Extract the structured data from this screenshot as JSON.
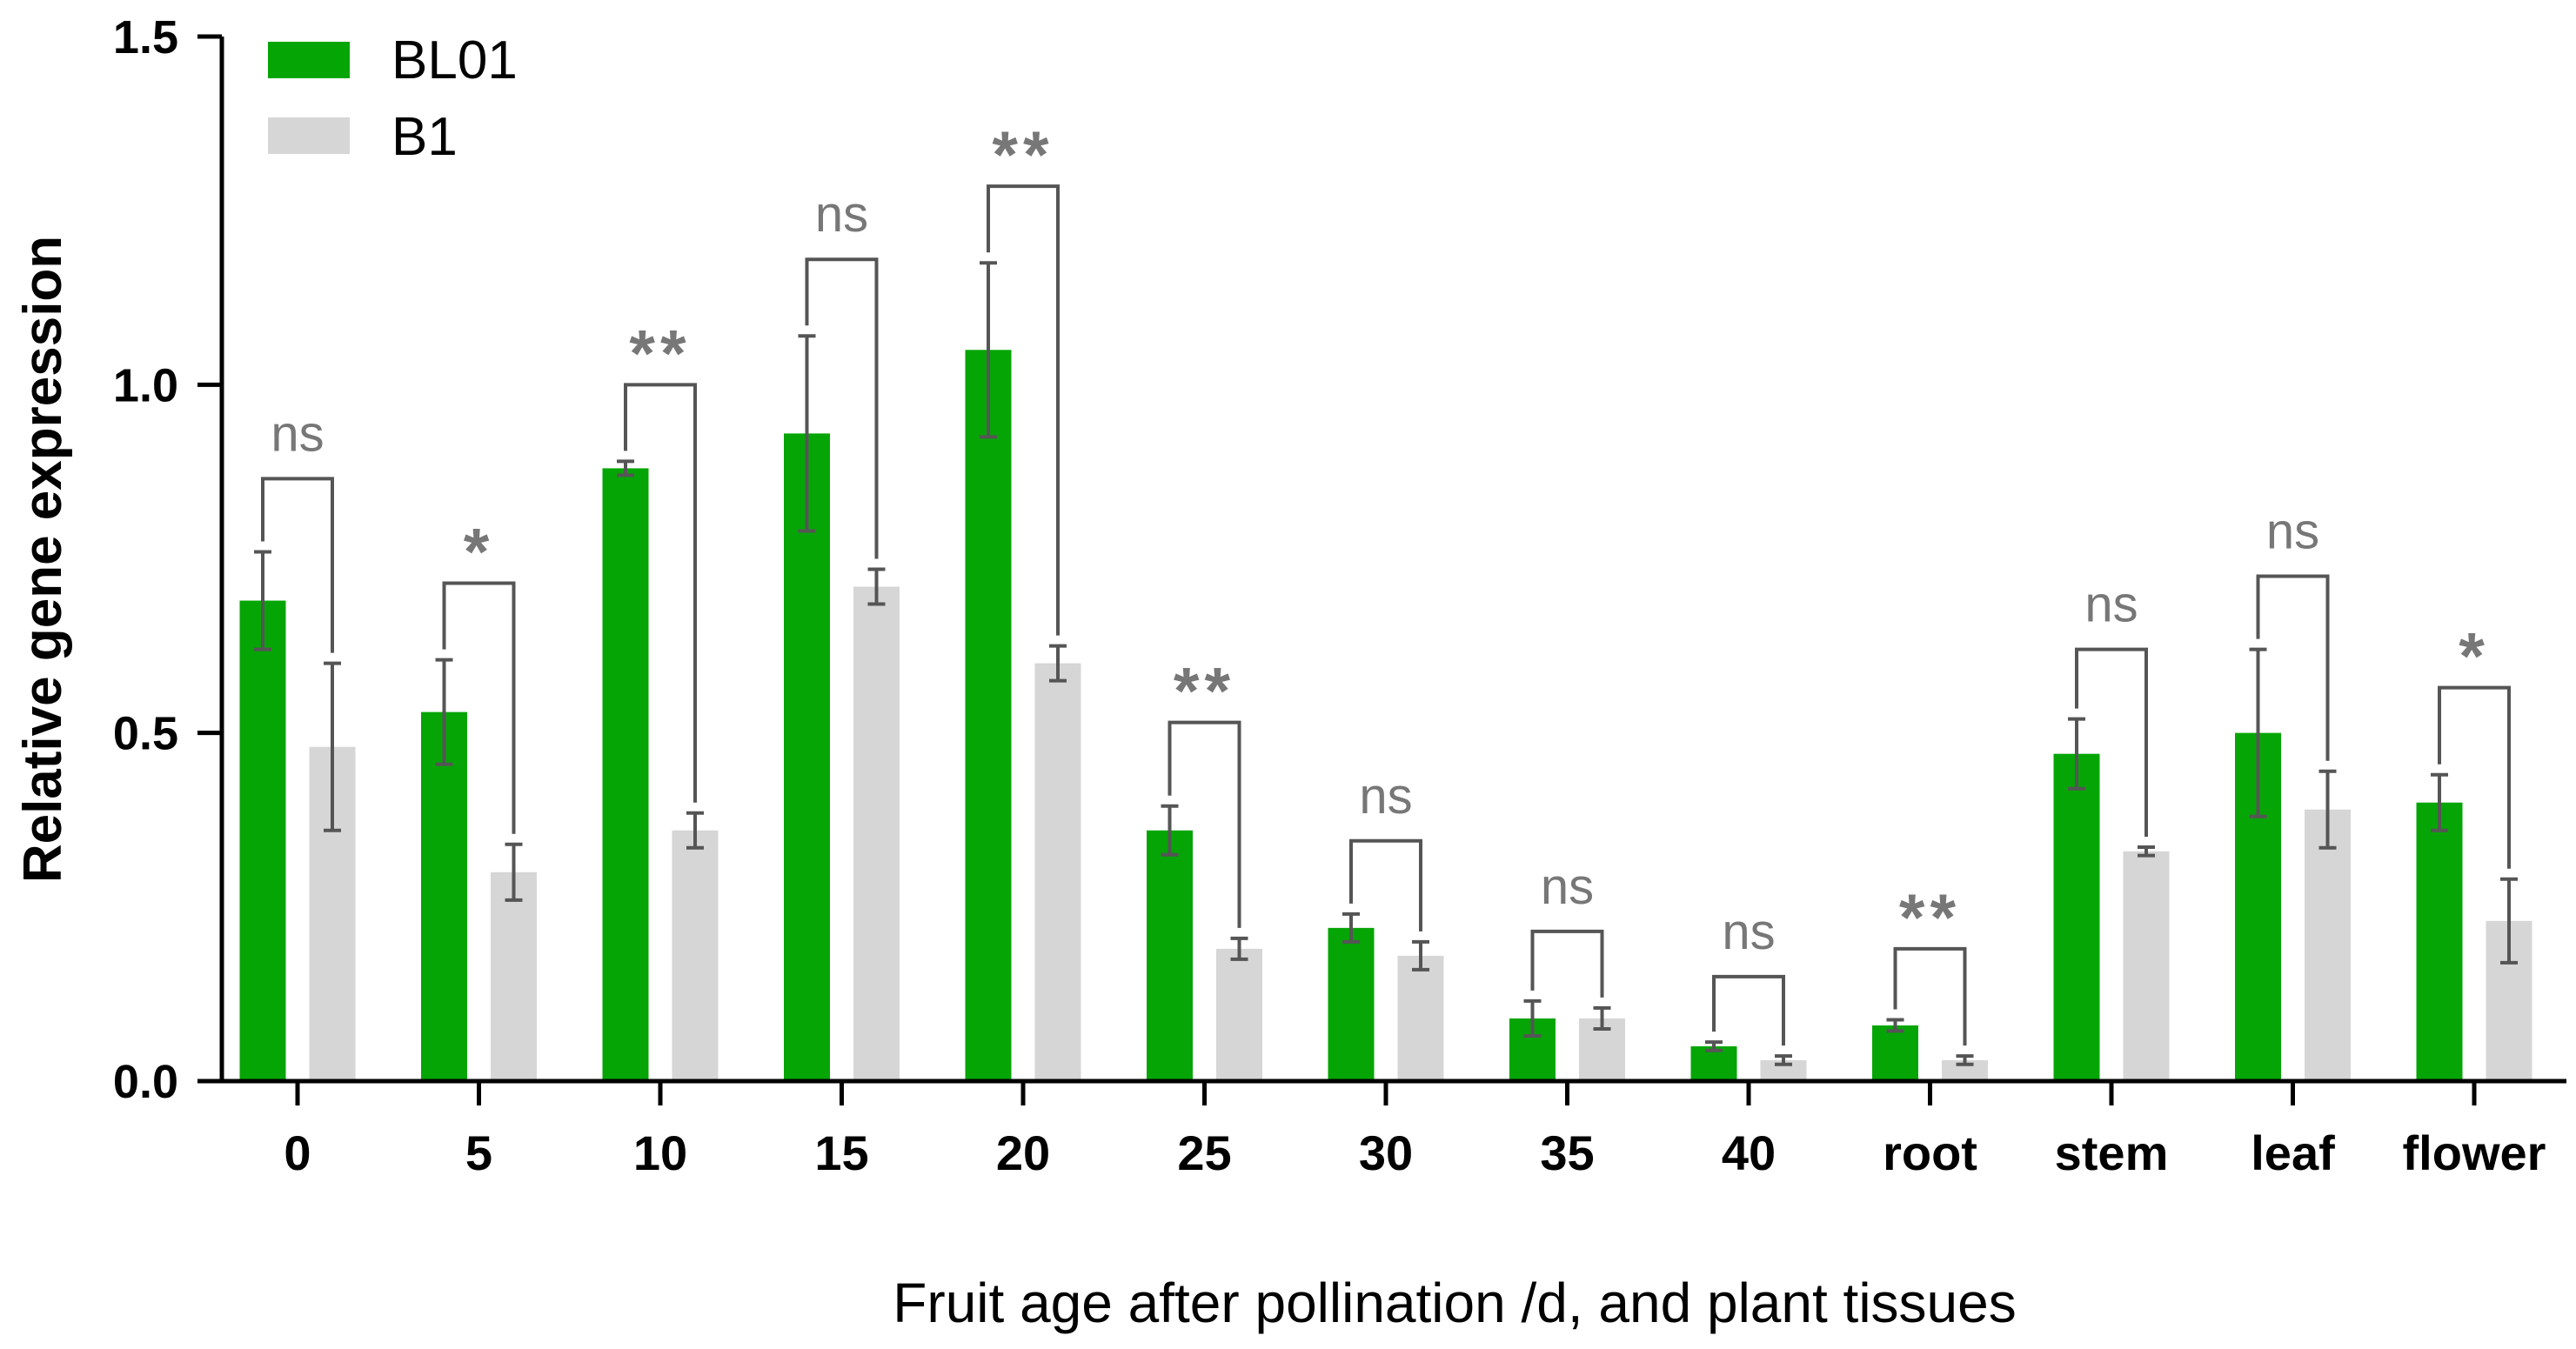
{
  "chart_data": {
    "type": "bar",
    "title": "",
    "xlabel": "Fruit age after pollination /d, and plant tissues",
    "ylabel": "Relative gene expression",
    "ylim": [
      0,
      1.5
    ],
    "yticks": [
      "0.0",
      "0.5",
      "1.0",
      "1.5"
    ],
    "legend_position": "top-left",
    "categories": [
      "0",
      "5",
      "10",
      "15",
      "20",
      "25",
      "30",
      "35",
      "40",
      "root",
      "stem",
      "leaf",
      "flower"
    ],
    "series": [
      {
        "name": "BL01",
        "color": "#06a506",
        "values": [
          0.69,
          0.53,
          0.88,
          0.93,
          1.05,
          0.36,
          0.22,
          0.09,
          0.05,
          0.08,
          0.47,
          0.5,
          0.4
        ],
        "errors": [
          0.07,
          0.075,
          0.01,
          0.14,
          0.125,
          0.035,
          0.02,
          0.025,
          0.006,
          0.008,
          0.05,
          0.12,
          0.04
        ]
      },
      {
        "name": "B1",
        "color": "#d6d6d6",
        "values": [
          0.48,
          0.3,
          0.36,
          0.71,
          0.6,
          0.19,
          0.18,
          0.09,
          0.03,
          0.03,
          0.33,
          0.39,
          0.23
        ],
        "errors": [
          0.12,
          0.04,
          0.025,
          0.025,
          0.025,
          0.015,
          0.02,
          0.015,
          0.006,
          0.006,
          0.006,
          0.055,
          0.06
        ]
      }
    ],
    "significance": [
      "ns",
      "*",
      "**",
      "ns",
      "**",
      "**",
      "ns",
      "ns",
      "ns",
      "**",
      "ns",
      "ns",
      "*"
    ],
    "bracket_heights": [
      0.865,
      0.715,
      1.0,
      1.18,
      1.285,
      0.515,
      0.345,
      0.215,
      0.15,
      0.19,
      0.62,
      0.725,
      0.565
    ]
  }
}
